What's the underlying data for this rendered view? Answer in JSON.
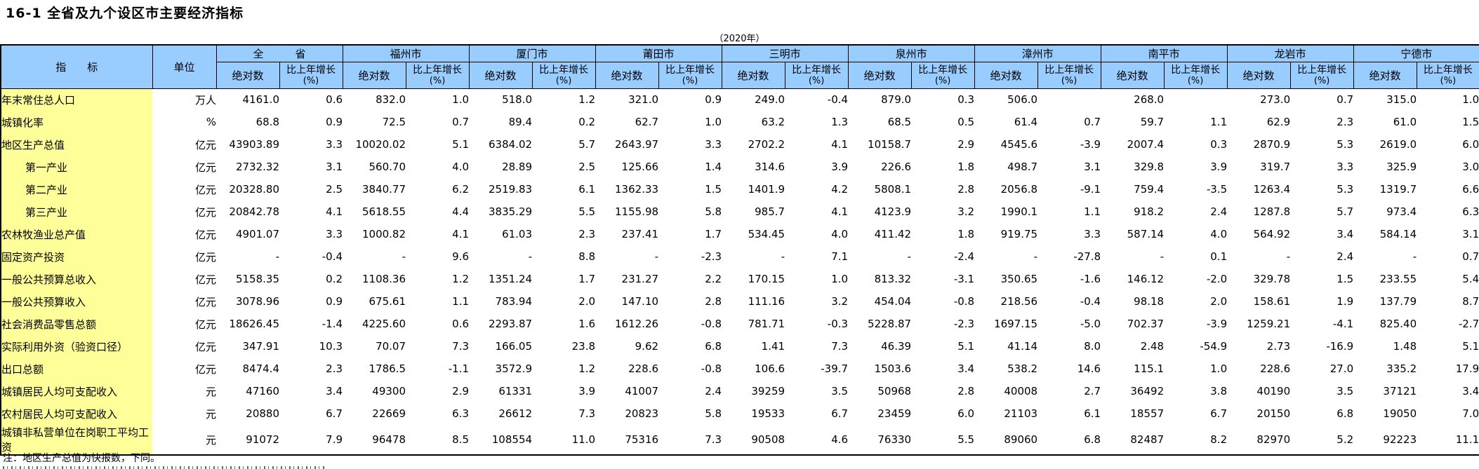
{
  "title": "16-1  全省及九个设区市主要经济指标",
  "subtitle": "（2020年）",
  "note": "注：地区生产总值为快报数，下同。",
  "colors": {
    "header_bg": "#99CCFF",
    "indicator_bg": "#FFFF99",
    "border": "#000000",
    "page_bg": "#FFFFFF"
  },
  "table": {
    "indicator_header": "指　　标",
    "unit_header": "单位",
    "abs_header": "绝对数",
    "growth_header": "比上年增长",
    "growth_header_unit": "(%)",
    "regions": [
      "全　　　省",
      "福州市",
      "厦门市",
      "莆田市",
      "三明市",
      "泉州市",
      "漳州市",
      "南平市",
      "龙岩市",
      "宁德市"
    ],
    "rows": [
      {
        "indicator": "年末常住总人口",
        "unit": "万人",
        "indent": false,
        "values": [
          [
            "4161.0",
            "0.6"
          ],
          [
            "832.0",
            "1.0"
          ],
          [
            "518.0",
            "1.2"
          ],
          [
            "321.0",
            "0.9"
          ],
          [
            "249.0",
            "-0.4"
          ],
          [
            "879.0",
            "0.3"
          ],
          [
            "506.0",
            ""
          ],
          [
            "268.0",
            ""
          ],
          [
            "273.0",
            "0.7"
          ],
          [
            "315.0",
            "1.0"
          ]
        ]
      },
      {
        "indicator": "城镇化率",
        "unit": "%",
        "indent": false,
        "values": [
          [
            "68.8",
            "0.9"
          ],
          [
            "72.5",
            "0.7"
          ],
          [
            "89.4",
            "0.2"
          ],
          [
            "62.7",
            "1.0"
          ],
          [
            "63.2",
            "1.3"
          ],
          [
            "68.5",
            "0.5"
          ],
          [
            "61.4",
            "0.7"
          ],
          [
            "59.7",
            "1.1"
          ],
          [
            "62.9",
            "2.3"
          ],
          [
            "61.0",
            "1.5"
          ]
        ]
      },
      {
        "indicator": "地区生产总值",
        "unit": "亿元",
        "indent": false,
        "values": [
          [
            "43903.89",
            "3.3"
          ],
          [
            "10020.02",
            "5.1"
          ],
          [
            "6384.02",
            "5.7"
          ],
          [
            "2643.97",
            "3.3"
          ],
          [
            "2702.2",
            "4.1"
          ],
          [
            "10158.7",
            "2.9"
          ],
          [
            "4545.6",
            "-3.9"
          ],
          [
            "2007.4",
            "0.3"
          ],
          [
            "2870.9",
            "5.3"
          ],
          [
            "2619.0",
            "6.0"
          ]
        ]
      },
      {
        "indicator": "第一产业",
        "unit": "亿元",
        "indent": true,
        "values": [
          [
            "2732.32",
            "3.1"
          ],
          [
            "560.70",
            "4.0"
          ],
          [
            "28.89",
            "2.5"
          ],
          [
            "125.66",
            "1.4"
          ],
          [
            "314.6",
            "3.9"
          ],
          [
            "226.6",
            "1.8"
          ],
          [
            "498.7",
            "3.1"
          ],
          [
            "329.8",
            "3.9"
          ],
          [
            "319.7",
            "3.3"
          ],
          [
            "325.9",
            "3.0"
          ]
        ]
      },
      {
        "indicator": "第二产业",
        "unit": "亿元",
        "indent": true,
        "values": [
          [
            "20328.80",
            "2.5"
          ],
          [
            "3840.77",
            "6.2"
          ],
          [
            "2519.83",
            "6.1"
          ],
          [
            "1362.33",
            "1.5"
          ],
          [
            "1401.9",
            "4.2"
          ],
          [
            "5808.1",
            "2.8"
          ],
          [
            "2056.8",
            "-9.1"
          ],
          [
            "759.4",
            "-3.5"
          ],
          [
            "1263.4",
            "5.3"
          ],
          [
            "1319.7",
            "6.6"
          ]
        ]
      },
      {
        "indicator": "第三产业",
        "unit": "亿元",
        "indent": true,
        "values": [
          [
            "20842.78",
            "4.1"
          ],
          [
            "5618.55",
            "4.4"
          ],
          [
            "3835.29",
            "5.5"
          ],
          [
            "1155.98",
            "5.8"
          ],
          [
            "985.7",
            "4.1"
          ],
          [
            "4123.9",
            "3.2"
          ],
          [
            "1990.1",
            "1.1"
          ],
          [
            "918.2",
            "2.4"
          ],
          [
            "1287.8",
            "5.7"
          ],
          [
            "973.4",
            "6.3"
          ]
        ]
      },
      {
        "indicator": "农林牧渔业总产值",
        "unit": "亿元",
        "indent": false,
        "values": [
          [
            "4901.07",
            "3.3"
          ],
          [
            "1000.82",
            "4.1"
          ],
          [
            "61.03",
            "2.3"
          ],
          [
            "237.41",
            "1.7"
          ],
          [
            "534.45",
            "4.0"
          ],
          [
            "411.42",
            "1.8"
          ],
          [
            "919.75",
            "3.3"
          ],
          [
            "587.14",
            "4.0"
          ],
          [
            "564.92",
            "3.4"
          ],
          [
            "584.14",
            "3.1"
          ]
        ]
      },
      {
        "indicator": "固定资产投资",
        "unit": "亿元",
        "indent": false,
        "values": [
          [
            "-",
            "-0.4"
          ],
          [
            "-",
            "9.6"
          ],
          [
            "-",
            "8.8"
          ],
          [
            "-",
            "-2.3"
          ],
          [
            "-",
            "7.1"
          ],
          [
            "-",
            "-2.4"
          ],
          [
            "-",
            "-27.8"
          ],
          [
            "-",
            "0.1"
          ],
          [
            "-",
            "2.4"
          ],
          [
            "-",
            "0.7"
          ]
        ]
      },
      {
        "indicator": "一般公共预算总收入",
        "unit": "亿元",
        "indent": false,
        "values": [
          [
            "5158.35",
            "0.2"
          ],
          [
            "1108.36",
            "1.2"
          ],
          [
            "1351.24",
            "1.7"
          ],
          [
            "231.27",
            "2.2"
          ],
          [
            "170.15",
            "1.0"
          ],
          [
            "813.32",
            "-3.1"
          ],
          [
            "350.65",
            "-1.6"
          ],
          [
            "146.12",
            "-2.0"
          ],
          [
            "329.78",
            "1.5"
          ],
          [
            "233.55",
            "5.4"
          ]
        ]
      },
      {
        "indicator": "一般公共预算收入",
        "unit": "亿元",
        "indent": false,
        "values": [
          [
            "3078.96",
            "0.9"
          ],
          [
            "675.61",
            "1.1"
          ],
          [
            "783.94",
            "2.0"
          ],
          [
            "147.10",
            "2.8"
          ],
          [
            "111.16",
            "3.2"
          ],
          [
            "454.04",
            "-0.8"
          ],
          [
            "218.56",
            "-0.4"
          ],
          [
            "98.18",
            "2.0"
          ],
          [
            "158.61",
            "1.9"
          ],
          [
            "137.79",
            "8.7"
          ]
        ]
      },
      {
        "indicator": "社会消费品零售总额",
        "unit": "亿元",
        "indent": false,
        "values": [
          [
            "18626.45",
            "-1.4"
          ],
          [
            "4225.60",
            "0.6"
          ],
          [
            "2293.87",
            "1.6"
          ],
          [
            "1612.26",
            "-0.8"
          ],
          [
            "781.71",
            "-0.3"
          ],
          [
            "5228.87",
            "-2.3"
          ],
          [
            "1697.15",
            "-5.0"
          ],
          [
            "702.37",
            "-3.9"
          ],
          [
            "1259.21",
            "-4.1"
          ],
          [
            "825.40",
            "-2.7"
          ]
        ]
      },
      {
        "indicator": "实际利用外资（验资口径）",
        "unit": "亿元",
        "indent": false,
        "values": [
          [
            "347.91",
            "10.3"
          ],
          [
            "70.07",
            "7.3"
          ],
          [
            "166.05",
            "23.8"
          ],
          [
            "9.62",
            "6.8"
          ],
          [
            "1.41",
            "7.3"
          ],
          [
            "46.39",
            "5.1"
          ],
          [
            "41.14",
            "8.0"
          ],
          [
            "2.48",
            "-54.9"
          ],
          [
            "2.73",
            "-16.9"
          ],
          [
            "1.48",
            "5.1"
          ]
        ]
      },
      {
        "indicator": "出口总额",
        "unit": "亿元",
        "indent": false,
        "values": [
          [
            "8474.4",
            "2.3"
          ],
          [
            "1786.5",
            "-1.1"
          ],
          [
            "3572.9",
            "1.2"
          ],
          [
            "228.6",
            "-0.8"
          ],
          [
            "106.6",
            "-39.7"
          ],
          [
            "1503.6",
            "3.4"
          ],
          [
            "538.2",
            "14.6"
          ],
          [
            "115.1",
            "1.0"
          ],
          [
            "228.6",
            "27.0"
          ],
          [
            "335.2",
            "17.9"
          ]
        ]
      },
      {
        "indicator": "城镇居民人均可支配收入",
        "unit": "元",
        "indent": false,
        "values": [
          [
            "47160",
            "3.4"
          ],
          [
            "49300",
            "2.9"
          ],
          [
            "61331",
            "3.9"
          ],
          [
            "41007",
            "2.4"
          ],
          [
            "39259",
            "3.5"
          ],
          [
            "50968",
            "2.8"
          ],
          [
            "40008",
            "2.7"
          ],
          [
            "36492",
            "3.8"
          ],
          [
            "40190",
            "3.5"
          ],
          [
            "37121",
            "3.4"
          ]
        ]
      },
      {
        "indicator": "农村居民人均可支配收入",
        "unit": "元",
        "indent": false,
        "values": [
          [
            "20880",
            "6.7"
          ],
          [
            "22669",
            "6.3"
          ],
          [
            "26612",
            "7.3"
          ],
          [
            "20823",
            "5.8"
          ],
          [
            "19533",
            "6.7"
          ],
          [
            "23459",
            "6.0"
          ],
          [
            "21103",
            "6.1"
          ],
          [
            "18557",
            "6.7"
          ],
          [
            "20150",
            "6.8"
          ],
          [
            "19050",
            "7.0"
          ]
        ]
      },
      {
        "indicator": "城镇非私营单位在岗职工平均工资",
        "unit": "元",
        "indent": false,
        "values": [
          [
            "91072",
            "7.9"
          ],
          [
            "96478",
            "8.5"
          ],
          [
            "108554",
            "11.0"
          ],
          [
            "75316",
            "7.3"
          ],
          [
            "90508",
            "4.6"
          ],
          [
            "76330",
            "5.5"
          ],
          [
            "89060",
            "6.8"
          ],
          [
            "82487",
            "8.2"
          ],
          [
            "82970",
            "5.2"
          ],
          [
            "92223",
            "11.1"
          ]
        ]
      }
    ]
  }
}
